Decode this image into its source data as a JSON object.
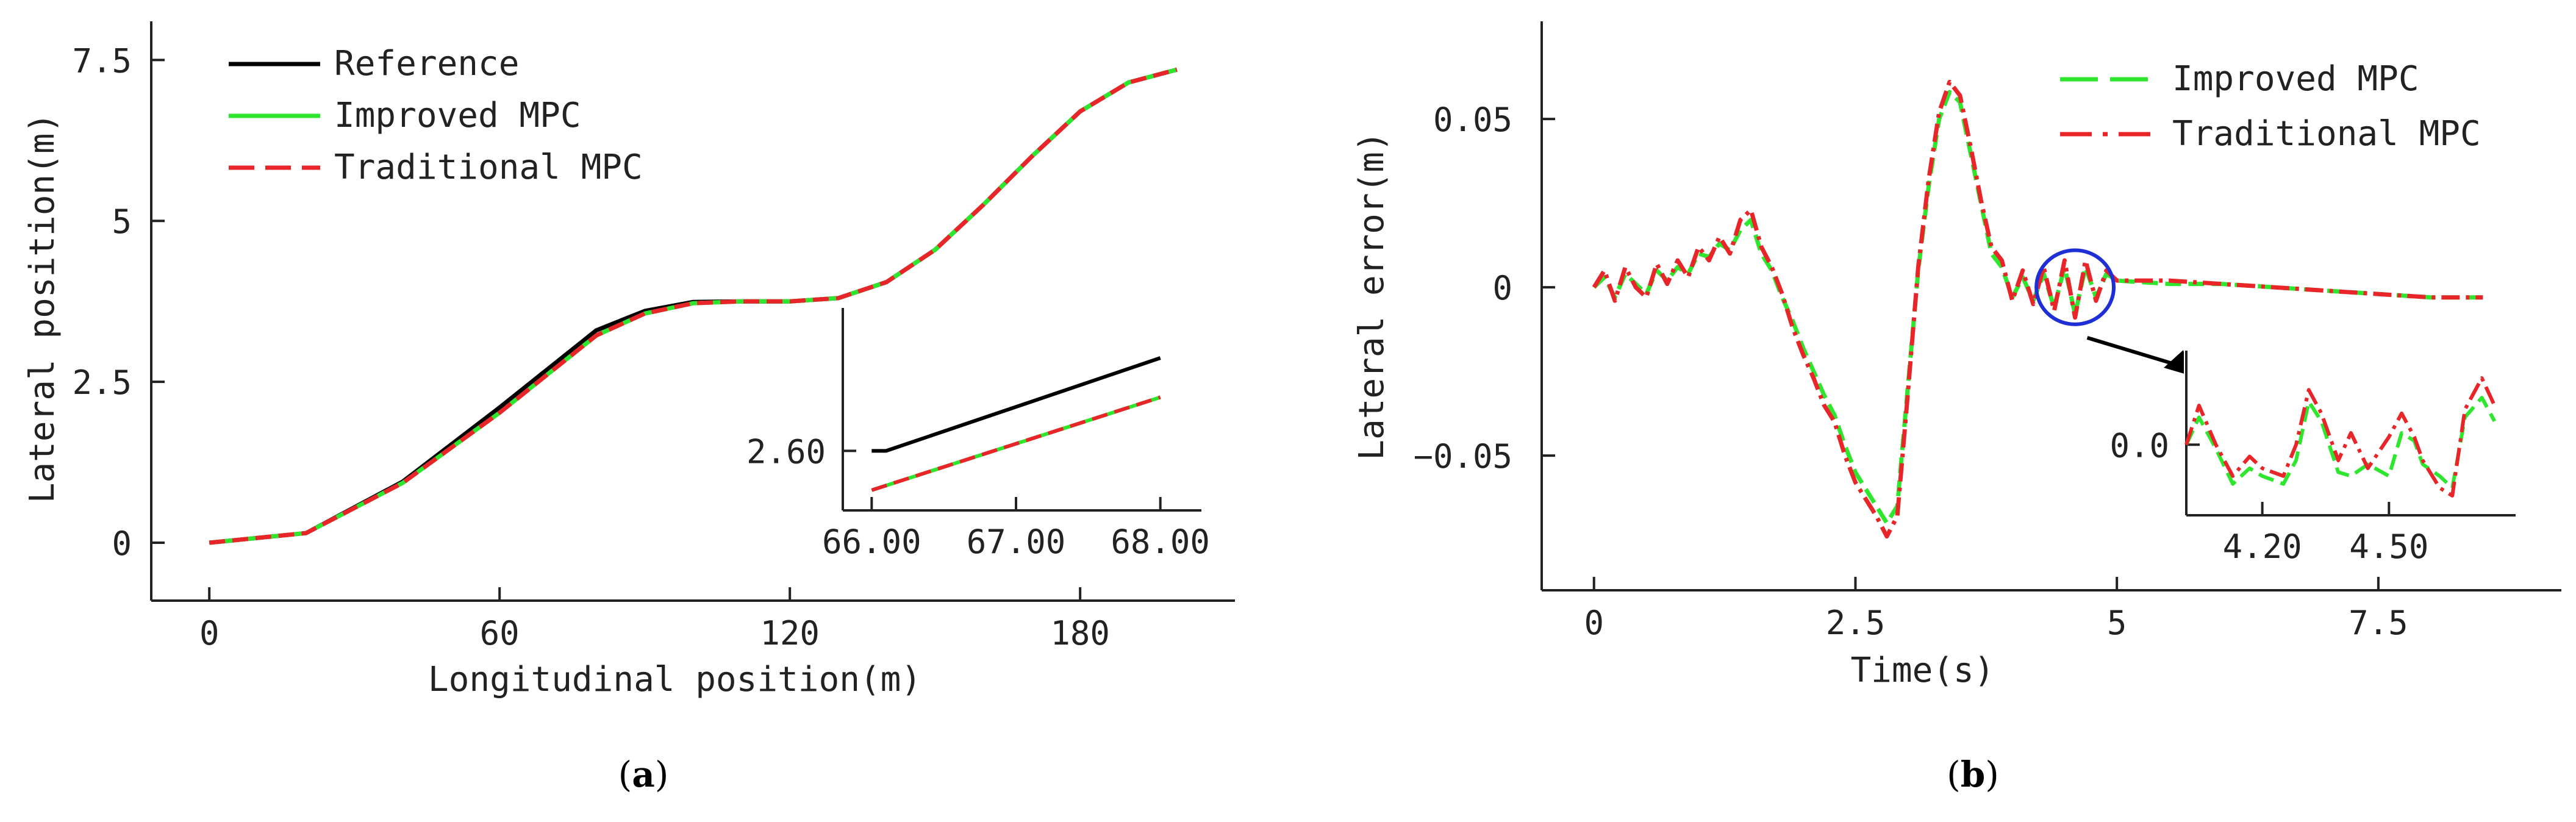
{
  "colors": {
    "reference": "#000000",
    "improved": "#2ee62e",
    "traditional": "#e8262a",
    "highlight": "#1f2fd6",
    "axis": "#222222"
  },
  "chart_data": [
    {
      "id": "a",
      "type": "line",
      "caption": "a",
      "xlabel": "Longitudinal position(m)",
      "ylabel": "Lateral position(m)",
      "xlim": [
        -12,
        212
      ],
      "ylim": [
        -0.9,
        8.1
      ],
      "xticks": [
        0,
        60,
        120,
        180
      ],
      "xtick_labels": [
        "0",
        "60",
        "120",
        "180"
      ],
      "yticks": [
        0,
        2.5,
        5,
        7.5
      ],
      "ytick_labels": [
        "0",
        "2.5",
        "5",
        "7.5"
      ],
      "legend": {
        "position": "top-left",
        "entries": [
          {
            "name": "Reference",
            "style": "solid",
            "series": "reference"
          },
          {
            "name": "Improved MPC",
            "style": "solid",
            "series": "improved"
          },
          {
            "name": "Traditional MPC",
            "style": "dashed",
            "series": "traditional"
          }
        ]
      },
      "series": [
        {
          "name": "Reference",
          "key": "reference",
          "style": "solid",
          "x": [
            0,
            20,
            40,
            60,
            80,
            90,
            100,
            110,
            120,
            130,
            140,
            150,
            160,
            170,
            180,
            190,
            200
          ],
          "y": [
            0,
            0.15,
            0.95,
            2.1,
            3.3,
            3.6,
            3.74,
            3.75,
            3.75,
            3.8,
            4.05,
            4.55,
            5.25,
            6.0,
            6.7,
            7.15,
            7.35
          ]
        },
        {
          "name": "Improved MPC",
          "key": "improved",
          "style": "solid",
          "x": [
            0,
            20,
            40,
            60,
            80,
            90,
            100,
            110,
            120,
            130,
            140,
            150,
            160,
            170,
            180,
            190,
            200
          ],
          "y": [
            0,
            0.15,
            0.93,
            2.02,
            3.22,
            3.56,
            3.72,
            3.75,
            3.75,
            3.8,
            4.05,
            4.55,
            5.25,
            6.0,
            6.7,
            7.15,
            7.35
          ]
        },
        {
          "name": "Traditional MPC",
          "key": "traditional",
          "style": "dashed",
          "x": [
            0,
            20,
            40,
            60,
            80,
            90,
            100,
            110,
            120,
            130,
            140,
            150,
            160,
            170,
            180,
            190,
            200
          ],
          "y": [
            0,
            0.15,
            0.93,
            2.02,
            3.22,
            3.56,
            3.72,
            3.75,
            3.75,
            3.8,
            4.05,
            4.55,
            5.25,
            6.0,
            6.7,
            7.15,
            7.35
          ]
        }
      ],
      "inset": {
        "xlim": [
          65.8,
          68.2
        ],
        "ylim": [
          2.55,
          2.72
        ],
        "xticks": [
          66.0,
          67.0,
          68.0
        ],
        "xtick_labels": [
          "66.00",
          "67.00",
          "68.00"
        ],
        "yticks": [
          2.6
        ],
        "ytick_labels": [
          "2.60"
        ],
        "series": [
          {
            "key": "reference",
            "style": "solid",
            "x": [
              66.0,
              66.1,
              68.0
            ],
            "y": [
              2.6,
              2.6,
              2.678
            ]
          },
          {
            "key": "improved",
            "style": "solid",
            "x": [
              66.0,
              68.0
            ],
            "y": [
              2.567,
              2.645
            ]
          },
          {
            "key": "traditional",
            "style": "dashed",
            "x": [
              66.0,
              68.0
            ],
            "y": [
              2.567,
              2.645
            ]
          }
        ]
      }
    },
    {
      "id": "b",
      "type": "line",
      "caption": "b",
      "xlabel": "Time(s)",
      "ylabel": "Lateral error(m)",
      "xlim": [
        -0.5,
        9.25
      ],
      "ylim": [
        -0.09,
        0.079
      ],
      "xticks": [
        0,
        2.5,
        5,
        7.5
      ],
      "xtick_labels": [
        "0",
        "2.5",
        "5",
        "7.5"
      ],
      "yticks": [
        0.05,
        0,
        -0.05
      ],
      "ytick_labels": [
        "0.05",
        "0",
        "−0.05"
      ],
      "legend": {
        "position": "top-right",
        "entries": [
          {
            "name": "Improved MPC",
            "style": "dashed",
            "series": "improved"
          },
          {
            "name": "Traditional MPC",
            "style": "dashdot",
            "series": "traditional"
          }
        ]
      },
      "highlight_region": {
        "cx": 4.6,
        "cy": 0.0,
        "rx": 0.37,
        "ry": 0.011
      },
      "series": [
        {
          "name": "Improved MPC",
          "key": "improved",
          "style": "dashed",
          "x": [
            0,
            0.1,
            0.2,
            0.3,
            0.4,
            0.5,
            0.6,
            0.7,
            0.8,
            0.9,
            1.0,
            1.1,
            1.2,
            1.3,
            1.4,
            1.5,
            1.6,
            1.7,
            1.8,
            1.9,
            2.0,
            2.1,
            2.2,
            2.3,
            2.4,
            2.5,
            2.6,
            2.7,
            2.8,
            2.9,
            3.0,
            3.1,
            3.2,
            3.3,
            3.4,
            3.5,
            3.6,
            3.7,
            3.8,
            3.9,
            4.0,
            4.1,
            4.2,
            4.3,
            4.4,
            4.5,
            4.6,
            4.7,
            4.8,
            4.9,
            5.0,
            5.5,
            6.0,
            6.5,
            7.0,
            7.5,
            8.0,
            8.5
          ],
          "y": [
            0,
            0.003,
            -0.003,
            0.004,
            0.001,
            -0.002,
            0.005,
            0.002,
            0.006,
            0.004,
            0.01,
            0.009,
            0.013,
            0.011,
            0.017,
            0.02,
            0.01,
            0.005,
            -0.003,
            -0.01,
            -0.018,
            -0.025,
            -0.032,
            -0.038,
            -0.047,
            -0.055,
            -0.06,
            -0.065,
            -0.07,
            -0.065,
            -0.03,
            0.005,
            0.03,
            0.05,
            0.058,
            0.055,
            0.04,
            0.025,
            0.01,
            0.006,
            -0.003,
            0.003,
            -0.004,
            0.004,
            -0.006,
            0.006,
            -0.008,
            0.006,
            -0.003,
            0.004,
            0.002,
            0.001,
            0.001,
            0.0,
            -0.001,
            -0.002,
            -0.003,
            -0.003
          ]
        },
        {
          "name": "Traditional MPC",
          "key": "traditional",
          "style": "dashdot",
          "x": [
            0,
            0.1,
            0.2,
            0.3,
            0.4,
            0.5,
            0.6,
            0.7,
            0.8,
            0.9,
            1.0,
            1.1,
            1.2,
            1.3,
            1.4,
            1.5,
            1.6,
            1.7,
            1.8,
            1.9,
            2.0,
            2.1,
            2.2,
            2.3,
            2.4,
            2.5,
            2.6,
            2.7,
            2.8,
            2.9,
            3.0,
            3.1,
            3.2,
            3.3,
            3.4,
            3.5,
            3.6,
            3.7,
            3.8,
            3.9,
            4.0,
            4.1,
            4.2,
            4.3,
            4.4,
            4.5,
            4.6,
            4.7,
            4.8,
            4.9,
            5.0,
            5.5,
            6.0,
            6.5,
            7.0,
            7.5,
            8.0,
            8.5
          ],
          "y": [
            0,
            0.005,
            -0.004,
            0.006,
            0.0,
            -0.003,
            0.007,
            0.001,
            0.008,
            0.003,
            0.012,
            0.008,
            0.015,
            0.01,
            0.02,
            0.023,
            0.012,
            0.006,
            -0.002,
            -0.012,
            -0.02,
            -0.027,
            -0.035,
            -0.04,
            -0.05,
            -0.058,
            -0.063,
            -0.068,
            -0.074,
            -0.068,
            -0.032,
            0.006,
            0.032,
            0.052,
            0.061,
            0.057,
            0.042,
            0.026,
            0.012,
            0.008,
            -0.004,
            0.005,
            -0.005,
            0.006,
            -0.007,
            0.008,
            -0.009,
            0.008,
            -0.004,
            0.005,
            0.002,
            0.002,
            0.001,
            0.0,
            -0.001,
            -0.002,
            -0.003,
            -0.003
          ]
        }
      ],
      "inset": {
        "xlim": [
          4.02,
          4.8
        ],
        "ylim": [
          -0.009,
          0.012
        ],
        "xticks": [
          4.2,
          4.5
        ],
        "xtick_labels": [
          "4.20",
          "4.50"
        ],
        "yticks": [
          0.0
        ],
        "ytick_labels": [
          "0.0"
        ],
        "series": [
          {
            "key": "improved",
            "style": "dashed",
            "x": [
              4.02,
              4.05,
              4.09,
              4.13,
              4.17,
              4.2,
              4.25,
              4.28,
              4.31,
              4.34,
              4.38,
              4.41,
              4.45,
              4.5,
              4.53,
              4.56,
              4.58,
              4.62,
              4.65,
              4.68,
              4.72,
              4.75
            ],
            "y": [
              0.0,
              0.0035,
              -0.0005,
              -0.005,
              -0.003,
              -0.004,
              -0.005,
              -0.002,
              0.0055,
              0.003,
              -0.0035,
              -0.004,
              -0.0025,
              -0.004,
              0.0015,
              0.0005,
              -0.0025,
              -0.004,
              -0.0055,
              0.0035,
              0.006,
              0.003
            ]
          },
          {
            "key": "traditional",
            "style": "dashdot",
            "x": [
              4.02,
              4.05,
              4.09,
              4.13,
              4.17,
              4.2,
              4.25,
              4.28,
              4.31,
              4.34,
              4.38,
              4.41,
              4.45,
              4.5,
              4.53,
              4.56,
              4.58,
              4.62,
              4.65,
              4.68,
              4.72,
              4.75
            ],
            "y": [
              0.0,
              0.005,
              0.0,
              -0.004,
              -0.0015,
              -0.003,
              -0.004,
              0.0,
              0.007,
              0.004,
              -0.002,
              0.0015,
              -0.003,
              0.001,
              0.004,
              0.001,
              -0.002,
              -0.0055,
              -0.0065,
              0.0045,
              0.0085,
              0.005
            ]
          }
        ]
      }
    }
  ]
}
